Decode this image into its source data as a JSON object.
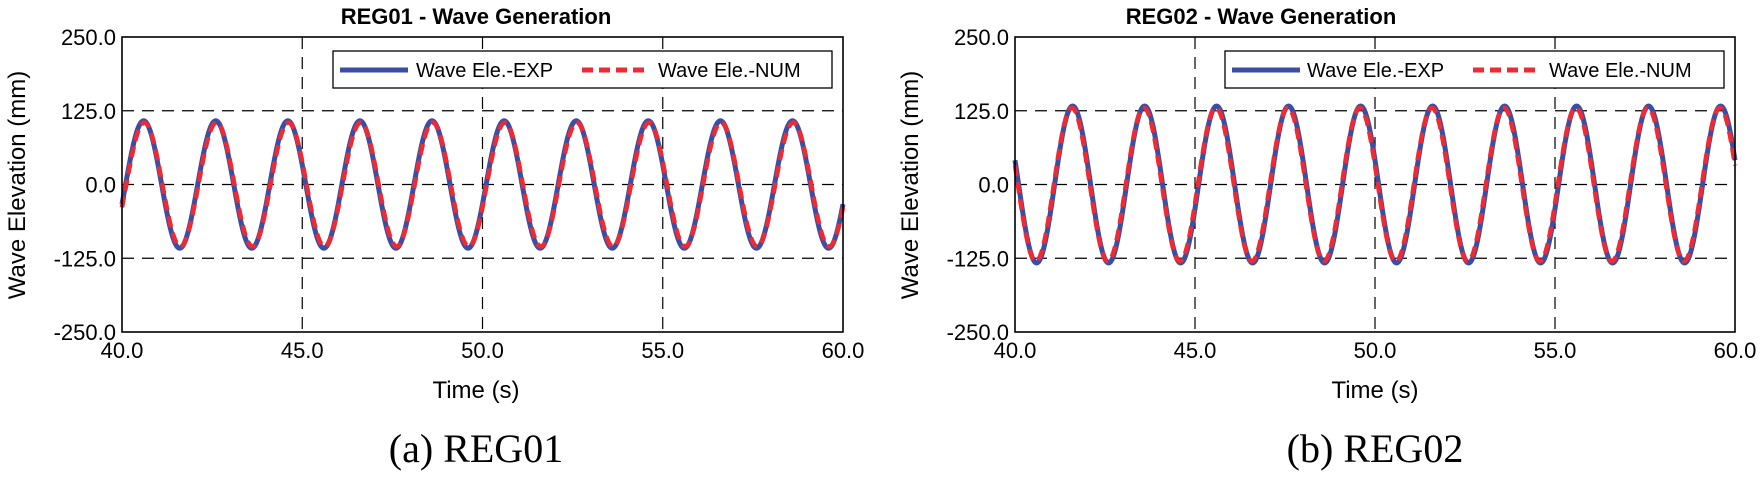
{
  "chart_data": [
    {
      "type": "line",
      "title": "REG01 - Wave Generation",
      "caption": "(a) REG01",
      "xlabel": "Time (s)",
      "ylabel": "Wave Elevation (mm)",
      "xlim": [
        40.0,
        60.0
      ],
      "ylim": [
        -250.0,
        250.0
      ],
      "xticks": [
        "40.0",
        "45.0",
        "50.0",
        "55.0",
        "60.0"
      ],
      "yticks": [
        "250.0",
        "125.0",
        "0.0",
        "-125.0",
        "-250.0"
      ],
      "grid": true,
      "legend_position": "top-right",
      "period_s": 2.0,
      "series": [
        {
          "name": "Wave Ele.-EXP",
          "style": "solid",
          "color": "#3b4ea3",
          "amplitude_mm": 108,
          "first_peak_s": 40.6
        },
        {
          "name": "Wave Ele.-NUM",
          "style": "dashed",
          "color": "#ee2a34",
          "amplitude_mm": 105,
          "first_peak_s": 40.62
        }
      ]
    },
    {
      "type": "line",
      "title": "REG02 - Wave Generation",
      "caption": "(b) REG02",
      "xlabel": "Time (s)",
      "ylabel": "Wave Elevation (mm)",
      "xlim": [
        40.0,
        60.0
      ],
      "ylim": [
        -250.0,
        250.0
      ],
      "xticks": [
        "40.0",
        "45.0",
        "50.0",
        "55.0",
        "60.0"
      ],
      "yticks": [
        "250.0",
        "125.0",
        "0.0",
        "-125.0",
        "-250.0"
      ],
      "grid": true,
      "legend_position": "top-right",
      "period_s": 2.0,
      "series": [
        {
          "name": "Wave Ele.-EXP",
          "style": "solid",
          "color": "#3b4ea3",
          "amplitude_mm": 133,
          "first_peak_s": 41.6
        },
        {
          "name": "Wave Ele.-NUM",
          "style": "dashed",
          "color": "#ee2a34",
          "amplitude_mm": 130,
          "first_peak_s": 41.58
        }
      ]
    }
  ]
}
